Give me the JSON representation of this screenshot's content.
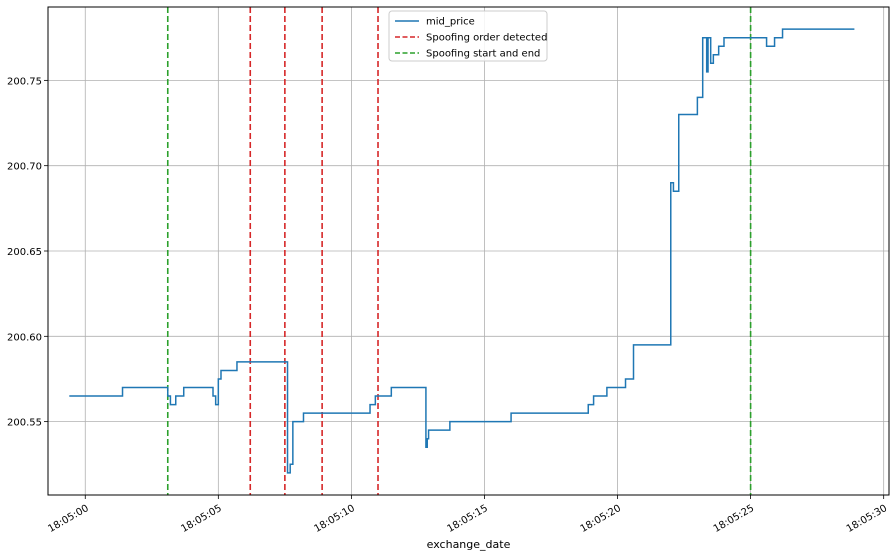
{
  "chart_data": {
    "type": "line",
    "xlabel": "exchange_date",
    "ylabel": "",
    "grid": true,
    "x_unit": "time (HH:MM:SS.s on 18:05)",
    "xlim": [
      "18:04:58.6",
      "18:05:30.2"
    ],
    "ylim": [
      200.507,
      200.793
    ],
    "x_ticks": [
      "18:05:00",
      "18:05:05",
      "18:05:10",
      "18:05:15",
      "18:05:20",
      "18:05:25",
      "18:05:30"
    ],
    "y_ticks": [
      "200.55",
      "200.60",
      "200.65",
      "200.70",
      "200.75"
    ],
    "legend": {
      "position": "top-center",
      "entries": [
        {
          "label": "mid_price",
          "color": "#1f77b4",
          "style": "solid"
        },
        {
          "label": "Spoofing order detected",
          "color": "#d62728",
          "style": "dashed"
        },
        {
          "label": "Spoofing start and end",
          "color": "#2ca02c",
          "style": "dashed"
        }
      ]
    },
    "series": [
      {
        "name": "mid_price",
        "color": "#1f77b4",
        "step": true,
        "x": [
          "18:04:59.4",
          "18:05:01.4",
          "18:05:03.1",
          "18:05:03.2",
          "18:05:03.4",
          "18:05:03.7",
          "18:05:04.8",
          "18:05:04.9",
          "18:05:05.0",
          "18:05:05.1",
          "18:05:05.7",
          "18:05:06.5",
          "18:05:07.5",
          "18:05:07.6",
          "18:05:07.7",
          "18:05:07.8",
          "18:05:08.2",
          "18:05:10.7",
          "18:05:10.9",
          "18:05:11.5",
          "18:05:12.8",
          "18:05:12.85",
          "18:05:12.9",
          "18:05:13.7",
          "18:05:16.0",
          "18:05:18.9",
          "18:05:19.1",
          "18:05:19.6",
          "18:05:20.3",
          "18:05:20.6",
          "18:05:22.0",
          "18:05:22.1",
          "18:05:22.3",
          "18:05:23.0",
          "18:05:23.2",
          "18:05:23.35",
          "18:05:23.4",
          "18:05:23.5",
          "18:05:23.6",
          "18:05:23.8",
          "18:05:24.0",
          "18:05:25.6",
          "18:05:25.9",
          "18:05:26.2",
          "18:05:28.9"
        ],
        "values": [
          200.565,
          200.57,
          200.565,
          200.56,
          200.565,
          200.57,
          200.565,
          200.56,
          200.575,
          200.58,
          200.585,
          200.585,
          200.585,
          200.52,
          200.525,
          200.55,
          200.555,
          200.56,
          200.565,
          200.57,
          200.535,
          200.54,
          200.545,
          200.55,
          200.555,
          200.56,
          200.565,
          200.57,
          200.575,
          200.595,
          200.69,
          200.685,
          200.73,
          200.74,
          200.775,
          200.755,
          200.775,
          200.76,
          200.765,
          200.77,
          200.775,
          200.77,
          200.775,
          200.78,
          200.78
        ]
      }
    ],
    "vlines": [
      {
        "x": "18:05:03.1",
        "color": "#2ca02c",
        "series": "Spoofing start and end"
      },
      {
        "x": "18:05:06.2",
        "color": "#d62728",
        "series": "Spoofing order detected"
      },
      {
        "x": "18:05:07.5",
        "color": "#d62728",
        "series": "Spoofing order detected"
      },
      {
        "x": "18:05:08.9",
        "color": "#d62728",
        "series": "Spoofing order detected"
      },
      {
        "x": "18:05:11.0",
        "color": "#d62728",
        "series": "Spoofing order detected"
      },
      {
        "x": "18:05:25.0",
        "color": "#2ca02c",
        "series": "Spoofing start and end"
      }
    ]
  }
}
